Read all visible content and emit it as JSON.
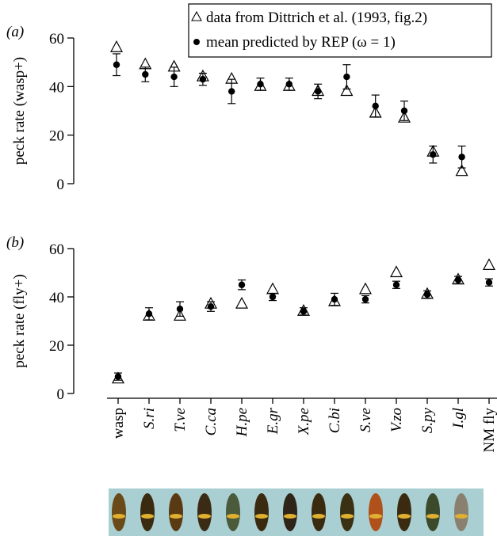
{
  "chart_data": [
    {
      "type": "scatter",
      "panel_label": "(a)",
      "y_label": "peck rate (wasp+)",
      "ylim": [
        0,
        60
      ],
      "yticks": [
        0,
        20,
        40,
        60
      ],
      "legend": "top-right",
      "series": [
        {
          "name": "data from Dittrich et al. (1993, fig.2)",
          "marker": "triangle",
          "color": "#000000",
          "values": [
            56,
            49,
            48,
            44,
            43,
            40,
            40,
            38,
            38,
            29,
            27,
            13,
            5
          ]
        },
        {
          "name": "mean predicted by REP (ω = 1)",
          "marker": "circle",
          "color": "#000000",
          "values": [
            49,
            45,
            44,
            43,
            38,
            41,
            41,
            38,
            44,
            32,
            30,
            12,
            11
          ],
          "errors": [
            4.5,
            3,
            4,
            2.5,
            5,
            2.5,
            2.5,
            3,
            5,
            4.5,
            4,
            3.5,
            4.5
          ]
        }
      ]
    },
    {
      "type": "scatter",
      "panel_label": "(b)",
      "y_label": "peck rate (fly+)",
      "ylim": [
        0,
        60
      ],
      "yticks": [
        0,
        20,
        40,
        60
      ],
      "categories": [
        "wasp",
        "S.ri",
        "T.ve",
        "C.ca",
        "H.pe",
        "E.gr",
        "X.pe",
        "C.bi",
        "S.ve",
        "V.zo",
        "S.py",
        "I.gl",
        "NM fly"
      ],
      "series": [
        {
          "marker": "triangle",
          "color": "#000000",
          "values": [
            6,
            32,
            32,
            37,
            37,
            43,
            34,
            38,
            43,
            50,
            41,
            47,
            53
          ]
        },
        {
          "marker": "circle",
          "color": "#000000",
          "values": [
            7,
            33,
            35,
            36,
            45,
            40,
            34,
            39,
            39,
            45,
            41,
            47,
            46
          ],
          "errors": [
            1.5,
            2.5,
            3,
            2,
            2,
            1.5,
            1.5,
            2.5,
            1.5,
            1.5,
            1.5,
            1.5,
            1.5
          ]
        }
      ]
    }
  ]
}
